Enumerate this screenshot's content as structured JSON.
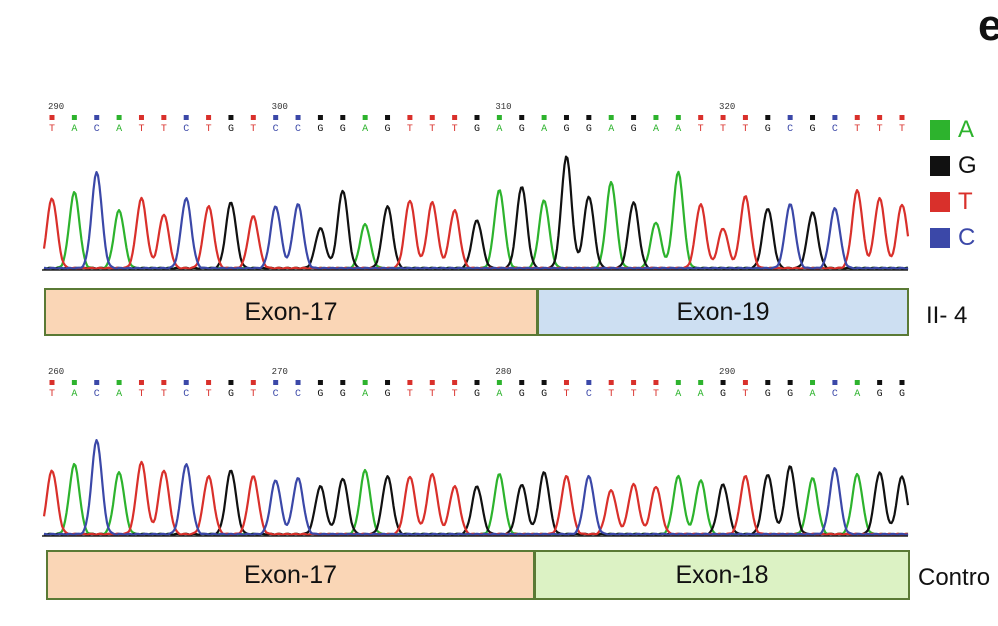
{
  "panel_letter": "e",
  "colors": {
    "A": "#2db32d",
    "G": "#111111",
    "T": "#d9302b",
    "C": "#3b48a8",
    "exon17": "#fad6b6",
    "exon18": "#dcf2c4",
    "exon19": "#cddff2",
    "exon_border": "#5a7a35"
  },
  "legend": [
    {
      "base": "A",
      "label": "A"
    },
    {
      "base": "G",
      "label": "G"
    },
    {
      "base": "T",
      "label": "T"
    },
    {
      "base": "C",
      "label": "C"
    }
  ],
  "tracks": [
    {
      "id": "II-4",
      "sample_label": "II- 4",
      "ticks": [
        "290",
        "300",
        "310",
        "320"
      ],
      "bases": "TACATTCTGTCCGGAGTTTGAGAGGAGAATTTGCGCTTT",
      "exons": [
        {
          "label": "Exon-17",
          "color_key": "exon17"
        },
        {
          "label": "Exon-19",
          "color_key": "exon19"
        }
      ]
    },
    {
      "id": "Control",
      "sample_label": "Contro",
      "ticks": [
        "260",
        "270",
        "280",
        "290"
      ],
      "bases": "TACATTCTGTCCGGAGTTTGAGGTCTTTAAGTGGACAGG",
      "exons": [
        {
          "label": "Exon-17",
          "color_key": "exon17"
        },
        {
          "label": "Exon-18",
          "color_key": "exon18"
        }
      ]
    }
  ]
}
